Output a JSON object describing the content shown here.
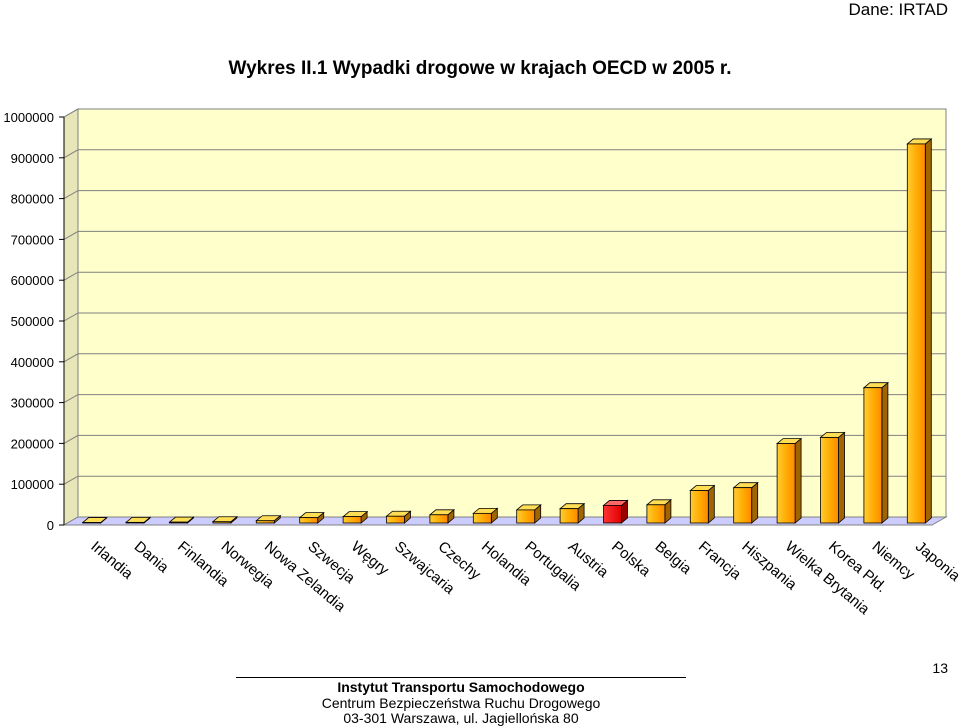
{
  "header": {
    "source": "Dane: IRTAD"
  },
  "chart_data": {
    "type": "bar",
    "title": "Wykres II.1  Wypadki drogowe w krajach OECD w 2005 r.",
    "categories": [
      "Irlandia",
      "Dania",
      "Finlandia",
      "Norwegia",
      "Nowa Zelandia",
      "Szwecja",
      "Węgry",
      "Szwajcaria",
      "Czechy",
      "Holandia",
      "Portugalia",
      "Austria",
      "Polska",
      "Belgia",
      "Francja",
      "Hiszpania",
      "Wielka Brytania",
      "Korea Płd.",
      "Niemcy",
      "Japonia"
    ],
    "values": [
      6000,
      6500,
      7000,
      8000,
      10500,
      18000,
      20500,
      21500,
      25000,
      28500,
      37000,
      40000,
      48000,
      49500,
      84500,
      91500,
      199500,
      214500,
      336500,
      934000
    ],
    "highlight": "Polska",
    "ylim": [
      0,
      1000000
    ],
    "yticks": [
      0,
      100000,
      200000,
      300000,
      400000,
      500000,
      600000,
      700000,
      800000,
      900000,
      1000000
    ],
    "colors": {
      "bar": "#ffb300",
      "highlight": "#ff0000",
      "wall": "#ffffcc",
      "floor": "#ccccff"
    },
    "grid": true,
    "legend": "none"
  },
  "footer": {
    "line1": "Instytut Transportu Samochodowego",
    "line2": "Centrum Bezpieczeństwa Ruchu Drogowego",
    "line3": "03-301 Warszawa, ul. Jagiellońska 80"
  },
  "page_number": "13"
}
